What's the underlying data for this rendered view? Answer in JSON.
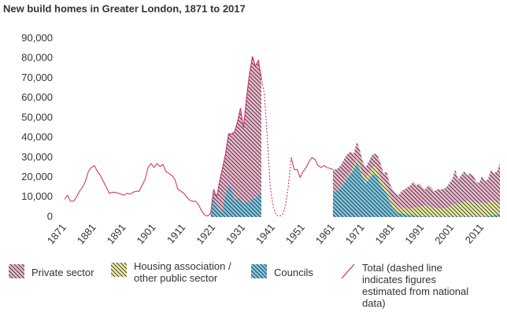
{
  "chart_data": {
    "type": "stacked_area",
    "title": "New build homes in Greater London, 1871 to 2017",
    "xlim": [
      1871,
      2017
    ],
    "xticks": [
      1871,
      1881,
      1891,
      1901,
      1911,
      1921,
      1931,
      1941,
      1951,
      1961,
      1971,
      1981,
      1991,
      2001,
      2011
    ],
    "ylim": [
      0,
      90000
    ],
    "yticks": [
      0,
      {
        "value": 10000,
        "label": "10,000"
      },
      {
        "value": 20000,
        "label": "20,000"
      },
      {
        "value": 30000,
        "label": "30,000"
      },
      {
        "value": 40000,
        "label": "40,000"
      },
      {
        "value": 50000,
        "label": "50,000"
      },
      {
        "value": 60000,
        "label": "60,000"
      },
      {
        "value": 70000,
        "label": "70,000"
      },
      {
        "value": 80000,
        "label": "80,000"
      },
      {
        "value": 90000,
        "label": "90,000"
      }
    ],
    "grid": false,
    "hatch_color": "#1d2b3a",
    "dashed_xlim": [
      1937,
      1947
    ],
    "x": [
      1871,
      1872,
      1873,
      1874,
      1875,
      1876,
      1877,
      1878,
      1879,
      1880,
      1881,
      1882,
      1883,
      1884,
      1885,
      1886,
      1887,
      1888,
      1889,
      1890,
      1891,
      1892,
      1893,
      1894,
      1895,
      1896,
      1897,
      1898,
      1899,
      1900,
      1901,
      1902,
      1903,
      1904,
      1905,
      1906,
      1907,
      1908,
      1909,
      1910,
      1911,
      1912,
      1913,
      1914,
      1915,
      1916,
      1917,
      1918,
      1919,
      1920,
      1921,
      1922,
      1923,
      1924,
      1925,
      1926,
      1927,
      1928,
      1929,
      1930,
      1931,
      1932,
      1933,
      1934,
      1935,
      1936,
      1937,
      1938,
      1939,
      1940,
      1941,
      1942,
      1943,
      1944,
      1945,
      1946,
      1947,
      1948,
      1949,
      1950,
      1951,
      1952,
      1953,
      1954,
      1955,
      1956,
      1957,
      1958,
      1959,
      1960,
      1961,
      1962,
      1963,
      1964,
      1965,
      1966,
      1967,
      1968,
      1969,
      1970,
      1971,
      1972,
      1973,
      1974,
      1975,
      1976,
      1977,
      1978,
      1979,
      1980,
      1981,
      1982,
      1983,
      1984,
      1985,
      1986,
      1987,
      1988,
      1989,
      1990,
      1991,
      1992,
      1993,
      1994,
      1995,
      1996,
      1997,
      1998,
      1999,
      2000,
      2001,
      2002,
      2003,
      2004,
      2005,
      2006,
      2007,
      2008,
      2009,
      2010,
      2011,
      2012,
      2013,
      2014,
      2015,
      2016,
      2017
    ],
    "series": [
      {
        "name": "Private sector",
        "kind": "area",
        "color": "#f2b6c9",
        "values": [
          null,
          null,
          null,
          null,
          null,
          null,
          null,
          null,
          null,
          null,
          null,
          null,
          null,
          null,
          null,
          null,
          null,
          null,
          null,
          null,
          null,
          null,
          null,
          null,
          null,
          null,
          null,
          null,
          null,
          null,
          null,
          null,
          null,
          null,
          null,
          null,
          null,
          null,
          null,
          null,
          null,
          null,
          null,
          null,
          null,
          null,
          null,
          null,
          null,
          1000,
          2000,
          4000,
          15000,
          21000,
          20000,
          26000,
          27000,
          35000,
          38000,
          46000,
          38000,
          52000,
          65000,
          71000,
          67000,
          67000,
          59000,
          null,
          null,
          null,
          null,
          null,
          null,
          null,
          null,
          null,
          null,
          null,
          null,
          null,
          null,
          null,
          null,
          null,
          null,
          null,
          null,
          null,
          null,
          null,
          11000,
          11000,
          11000,
          12000,
          11500,
          11000,
          10000,
          6500,
          8500,
          8000,
          6000,
          5500,
          6000,
          6500,
          6000,
          7000,
          7500,
          5000,
          8000,
          6000,
          6000,
          6000,
          6000,
          8000,
          9500,
          11000,
          12000,
          13500,
          11200,
          11900,
          9500,
          8100,
          10200,
          9700,
          8300,
          9800,
          9800,
          9800,
          10300,
          11800,
          12800,
          17300,
          12300,
          13800,
          15300,
          12800,
          13800,
          13300,
          10700,
          10200,
          13700,
          11200,
          11500,
          15700,
          14000,
          15800,
          20000
        ]
      },
      {
        "name": "Housing association / other public sector",
        "kind": "area",
        "color": "#eeea9a",
        "values": [
          null,
          null,
          null,
          null,
          null,
          null,
          null,
          null,
          null,
          null,
          null,
          null,
          null,
          null,
          null,
          null,
          null,
          null,
          null,
          null,
          null,
          null,
          null,
          null,
          null,
          null,
          null,
          null,
          null,
          null,
          null,
          null,
          null,
          null,
          null,
          null,
          null,
          null,
          null,
          null,
          null,
          null,
          null,
          null,
          null,
          null,
          null,
          null,
          null,
          null,
          null,
          null,
          null,
          null,
          null,
          null,
          null,
          null,
          null,
          null,
          null,
          null,
          null,
          null,
          null,
          null,
          null,
          null,
          null,
          null,
          null,
          null,
          null,
          null,
          null,
          null,
          null,
          null,
          null,
          null,
          null,
          null,
          null,
          null,
          null,
          null,
          null,
          null,
          null,
          null,
          0,
          0,
          0,
          0,
          500,
          1000,
          1000,
          1500,
          1500,
          2000,
          2000,
          2500,
          3000,
          3500,
          4000,
          4000,
          3500,
          3000,
          3000,
          3000,
          3000,
          3000,
          3000,
          3000,
          3000,
          3000,
          3000,
          3500,
          4000,
          4500,
          5000,
          5500,
          5500,
          5000,
          4500,
          4000,
          4000,
          4000,
          4500,
          5000,
          6000,
          6500,
          6500,
          7000,
          7500,
          8000,
          8000,
          7500,
          7000,
          6500,
          7000,
          6500,
          7000,
          7500,
          7000,
          6000,
          5500
        ]
      },
      {
        "name": "Councils",
        "kind": "area",
        "color": "#7fc7de",
        "values": [
          null,
          null,
          null,
          null,
          null,
          null,
          null,
          null,
          null,
          null,
          null,
          null,
          null,
          null,
          null,
          null,
          null,
          null,
          null,
          null,
          null,
          null,
          null,
          null,
          null,
          null,
          null,
          null,
          null,
          null,
          null,
          null,
          null,
          null,
          null,
          null,
          null,
          null,
          null,
          null,
          null,
          null,
          null,
          null,
          null,
          null,
          null,
          null,
          null,
          1000,
          12000,
          6000,
          3000,
          4000,
          12000,
          16000,
          15000,
          8000,
          10000,
          9000,
          7000,
          8000,
          7000,
          10000,
          9000,
          12000,
          11000,
          null,
          null,
          null,
          null,
          null,
          null,
          null,
          null,
          null,
          null,
          null,
          null,
          null,
          null,
          null,
          null,
          null,
          null,
          null,
          null,
          null,
          null,
          null,
          13000,
          13000,
          14000,
          15000,
          18000,
          20000,
          22000,
          24000,
          28000,
          24000,
          20000,
          17000,
          19000,
          21000,
          22000,
          20000,
          16000,
          14000,
          12000,
          8000,
          5000,
          3000,
          2000,
          2000,
          1500,
          1000,
          1000,
          1000,
          800,
          600,
          500,
          400,
          300,
          300,
          200,
          200,
          200,
          200,
          200,
          200,
          200,
          200,
          200,
          200,
          200,
          200,
          200,
          200,
          300,
          300,
          300,
          300,
          500,
          800,
          1000,
          1200,
          1500
        ]
      },
      {
        "name": "Total (dashed line indicates figures estimated from national data)",
        "kind": "line",
        "color": "#d4245e",
        "values": [
          9000,
          11000,
          8000,
          8000,
          10000,
          13000,
          15000,
          18000,
          23000,
          25000,
          26000,
          23000,
          21000,
          18000,
          15000,
          12000,
          12500,
          12500,
          12000,
          11500,
          11000,
          12000,
          11500,
          12500,
          13000,
          13000,
          16000,
          19000,
          25000,
          27000,
          25000,
          27000,
          25500,
          26500,
          23000,
          22000,
          21000,
          19000,
          14000,
          13000,
          12000,
          10000,
          8500,
          8000,
          8000,
          6000,
          3000,
          1000,
          500,
          2000,
          14000,
          10000,
          18000,
          25000,
          32000,
          42000,
          42000,
          43000,
          48000,
          55000,
          45000,
          60000,
          72000,
          81000,
          76000,
          79000,
          70000,
          62000,
          40000,
          15000,
          5000,
          1000,
          500,
          1000,
          5000,
          15000,
          30000,
          24000,
          24000,
          20000,
          23000,
          25000,
          28000,
          30000,
          29000,
          26000,
          25000,
          26000,
          25000,
          24500,
          24000,
          null,
          null,
          null,
          null,
          null,
          null,
          null,
          null,
          null,
          null,
          null,
          null,
          null,
          null,
          null,
          null,
          null,
          null,
          null,
          null,
          null,
          null,
          null,
          null,
          null,
          null,
          null,
          null,
          null,
          null,
          null,
          null,
          null,
          null,
          null,
          null,
          null,
          null,
          null,
          null,
          null,
          null,
          null,
          null,
          null,
          null,
          null,
          null,
          null,
          null,
          null,
          null,
          null,
          null,
          null,
          null
        ]
      }
    ]
  }
}
